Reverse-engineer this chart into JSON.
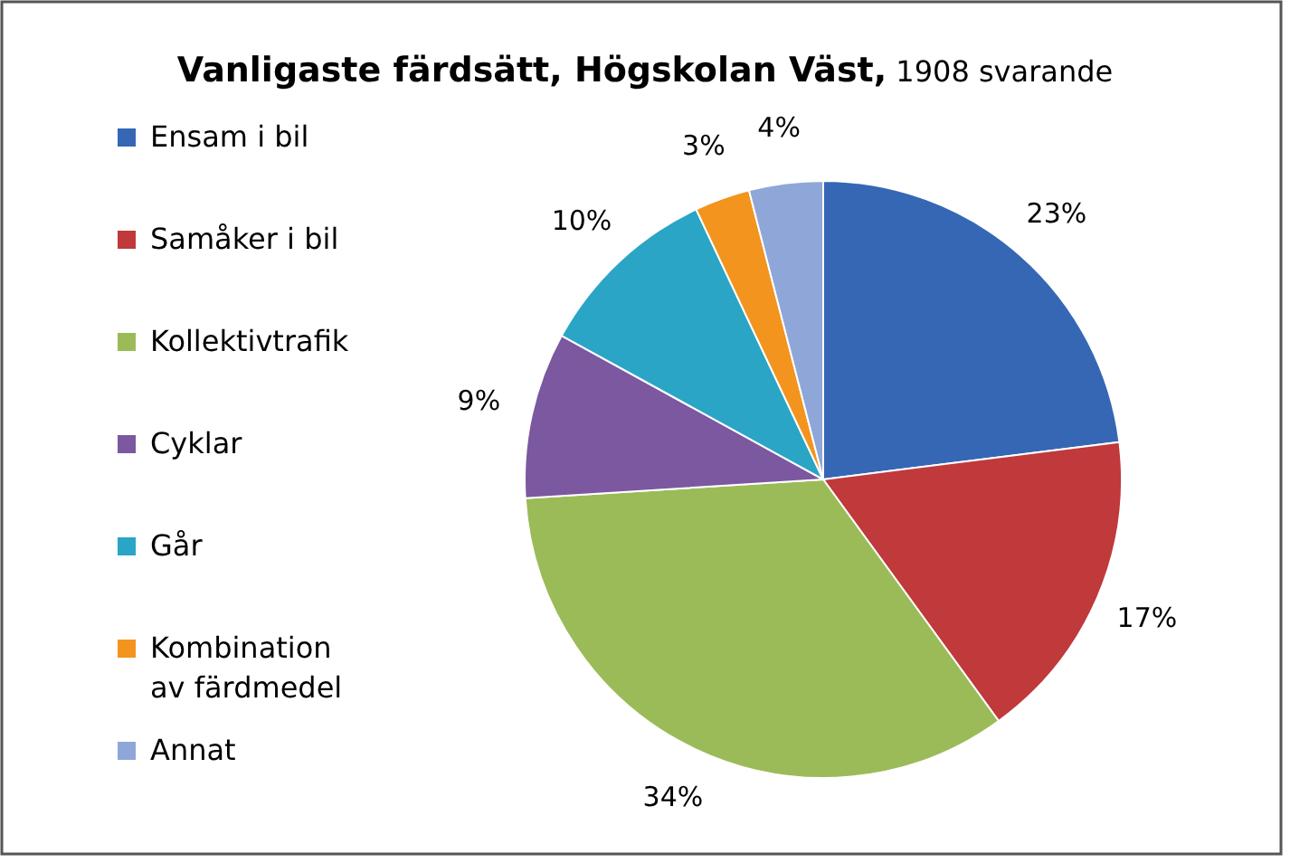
{
  "chart_data": {
    "type": "pie",
    "title": "Vanligaste färdsätt, Högskolan Väst,",
    "subtitle": "1908 svarande",
    "categories": [
      "Ensam i bil",
      "Samåker i bil",
      "Kollektivtrafik",
      "Cyklar",
      "Går",
      "Kombination av färdmedel",
      "Annat"
    ],
    "values": [
      23,
      17,
      34,
      9,
      10,
      3,
      4
    ],
    "value_labels": [
      "23%",
      "17%",
      "34%",
      "9%",
      "10%",
      "3%",
      "4%"
    ],
    "colors": [
      "#3567b5",
      "#c0393b",
      "#9bbb59",
      "#7b58a0",
      "#2aa5c6",
      "#f2941e",
      "#8fa7d8"
    ],
    "legend": "left"
  }
}
